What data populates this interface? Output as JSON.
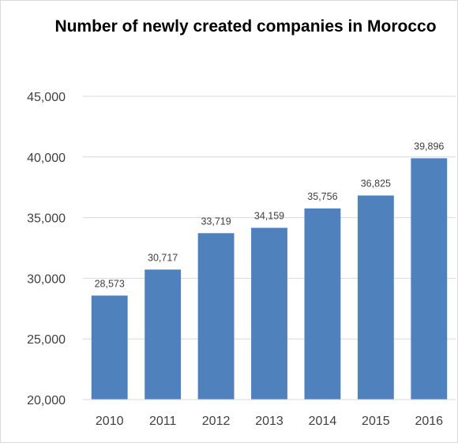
{
  "chart_data": {
    "type": "bar",
    "title": "Number of newly created companies in Morocco",
    "categories": [
      "2010",
      "2011",
      "2012",
      "2013",
      "2014",
      "2015",
      "2016"
    ],
    "values": [
      28573,
      30717,
      33719,
      34159,
      35756,
      36825,
      39896
    ],
    "data_labels": [
      "28,573",
      "30,717",
      "33,719",
      "34,159",
      "35,756",
      "36,825",
      "39,896"
    ],
    "ylim": [
      20000,
      45000
    ],
    "yticks": [
      20000,
      25000,
      30000,
      35000,
      40000,
      45000
    ],
    "ytick_labels": [
      "20,000",
      "25,000",
      "30,000",
      "35,000",
      "40,000",
      "45,000"
    ],
    "xlabel": "",
    "ylabel": "",
    "grid": true,
    "legend": "none",
    "bar_color": "#4f81bd",
    "grid_color": "#d9d9d9"
  }
}
